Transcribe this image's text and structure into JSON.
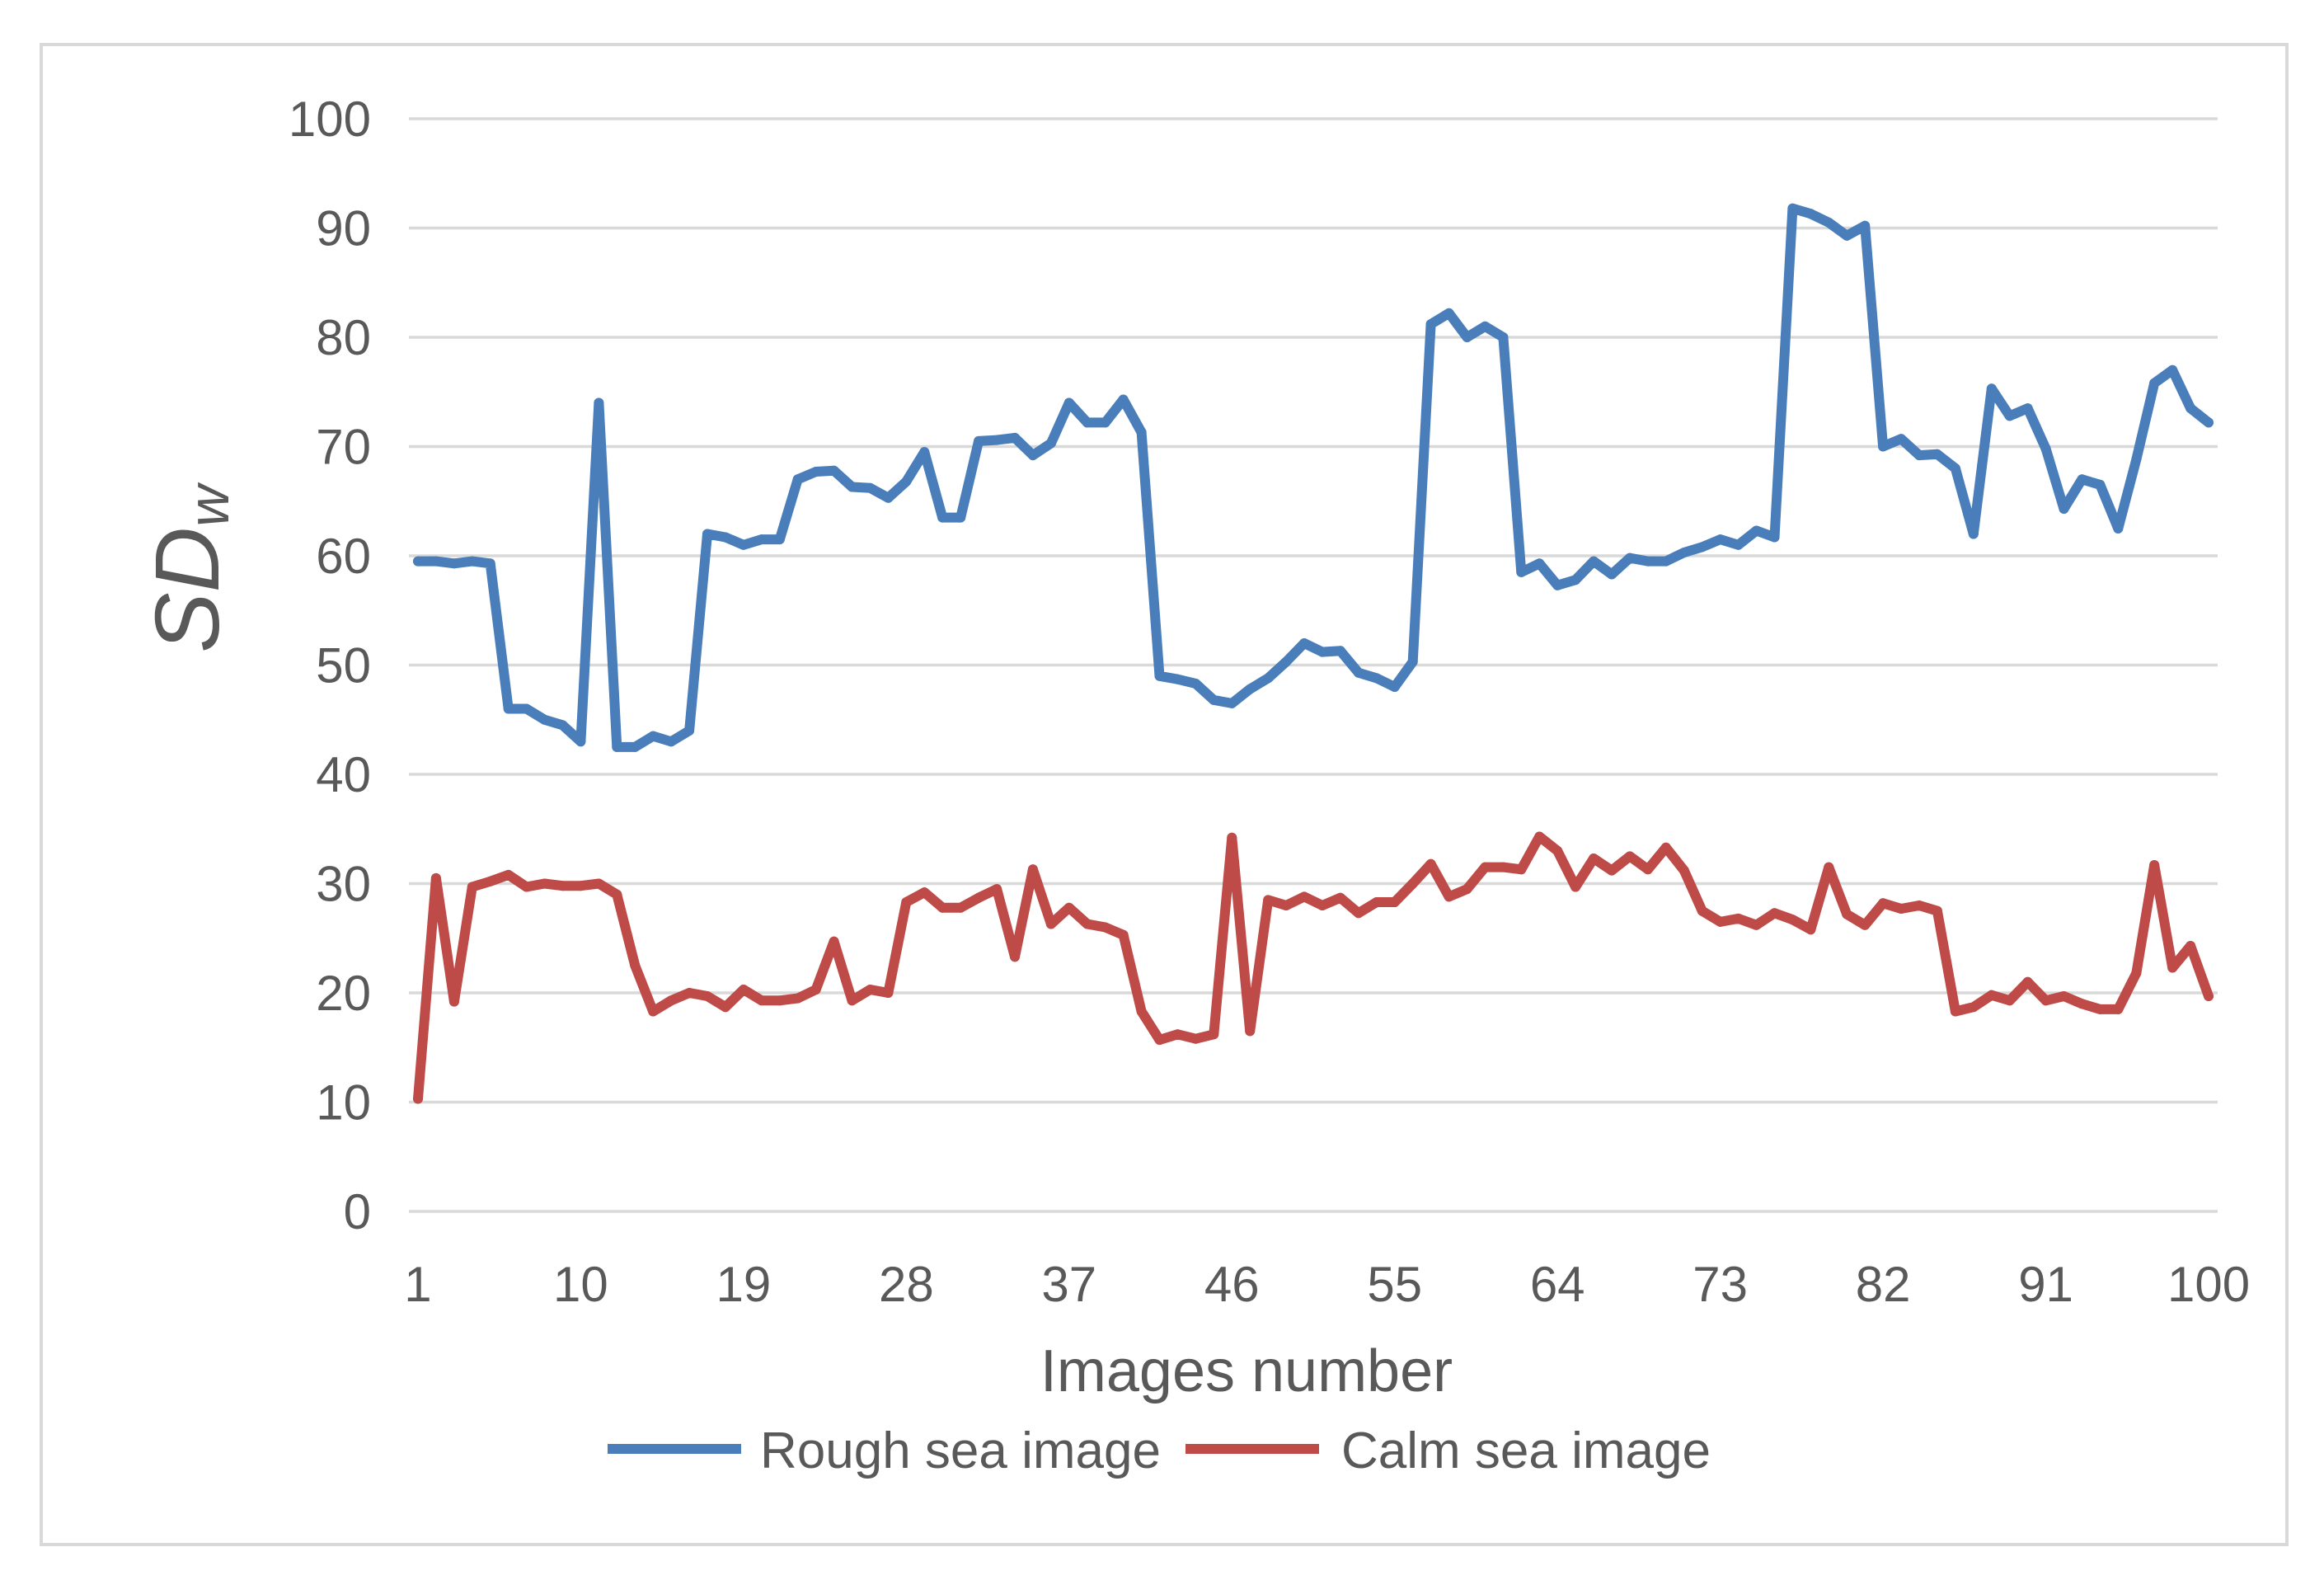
{
  "chart_data": {
    "type": "line",
    "xlabel": "Images number",
    "ylabel": "SD",
    "ylabel_subscript": "w",
    "ylim": [
      0,
      100
    ],
    "yticks": [
      0,
      10,
      20,
      30,
      40,
      50,
      60,
      70,
      80,
      90,
      100
    ],
    "xticks": [
      1,
      10,
      19,
      28,
      37,
      46,
      55,
      64,
      73,
      82,
      91,
      100
    ],
    "grid": "horizontal",
    "legend": "bottom",
    "x": [
      1,
      2,
      3,
      4,
      5,
      6,
      7,
      8,
      9,
      10,
      11,
      12,
      13,
      14,
      15,
      16,
      17,
      18,
      19,
      20,
      21,
      22,
      23,
      24,
      25,
      26,
      27,
      28,
      29,
      30,
      31,
      32,
      33,
      34,
      35,
      36,
      37,
      38,
      39,
      40,
      41,
      42,
      43,
      44,
      45,
      46,
      47,
      48,
      49,
      50,
      51,
      52,
      53,
      54,
      55,
      56,
      57,
      58,
      59,
      60,
      61,
      62,
      63,
      64,
      65,
      66,
      67,
      68,
      69,
      70,
      71,
      72,
      73,
      74,
      75,
      76,
      77,
      78,
      79,
      80,
      81,
      82,
      83,
      84,
      85,
      86,
      87,
      88,
      89,
      90,
      91,
      92,
      93,
      94,
      95,
      96,
      97,
      98,
      99,
      100
    ],
    "series": [
      {
        "name": "Rough sea image",
        "color": "#4a7ebb",
        "values": [
          59.5,
          59.5,
          59.3,
          59.5,
          59.3,
          46.0,
          46.0,
          45.0,
          44.5,
          43.0,
          74.0,
          42.5,
          42.5,
          43.5,
          43.0,
          44.0,
          62.0,
          61.7,
          61.0,
          61.5,
          61.5,
          67.0,
          67.7,
          67.8,
          66.3,
          66.2,
          65.3,
          66.8,
          69.5,
          63.5,
          63.5,
          70.5,
          70.6,
          70.8,
          69.2,
          70.3,
          74.0,
          72.2,
          72.2,
          74.3,
          71.3,
          49.0,
          48.7,
          48.3,
          46.8,
          46.5,
          47.8,
          48.8,
          50.3,
          52.0,
          51.2,
          51.3,
          49.3,
          48.8,
          48.0,
          50.3,
          81.2,
          82.2,
          80.0,
          81.0,
          80.0,
          58.5,
          59.3,
          57.3,
          57.8,
          59.5,
          58.3,
          59.8,
          59.5,
          59.5,
          60.3,
          60.8,
          61.5,
          61.0,
          62.3,
          61.7,
          91.8,
          91.3,
          90.5,
          89.3,
          90.2,
          70.0,
          70.7,
          69.2,
          69.3,
          68.0,
          62.0,
          75.3,
          72.8,
          73.5,
          69.8,
          64.3,
          67.0,
          66.5,
          62.5,
          68.8,
          75.8,
          77.0,
          73.5,
          72.2
        ]
      },
      {
        "name": "Calm sea image",
        "color": "#be4b48",
        "values": [
          10.3,
          30.5,
          19.2,
          29.7,
          30.2,
          30.8,
          29.7,
          30.0,
          29.8,
          29.8,
          30.0,
          29.0,
          22.5,
          18.3,
          19.3,
          20.0,
          19.7,
          18.7,
          20.3,
          19.3,
          19.3,
          19.5,
          20.3,
          24.7,
          19.3,
          20.3,
          20.0,
          28.3,
          29.2,
          27.8,
          27.8,
          28.7,
          29.5,
          23.3,
          31.3,
          26.3,
          27.8,
          26.3,
          26.0,
          25.3,
          18.3,
          15.7,
          16.2,
          15.8,
          16.2,
          34.2,
          16.5,
          28.5,
          28.0,
          28.8,
          28.0,
          28.7,
          27.3,
          28.3,
          28.3,
          30.0,
          31.8,
          28.8,
          29.5,
          31.5,
          31.5,
          31.3,
          34.3,
          33.0,
          29.7,
          32.3,
          31.2,
          32.5,
          31.3,
          33.3,
          31.2,
          27.5,
          26.5,
          26.8,
          26.2,
          27.3,
          26.7,
          25.8,
          31.5,
          27.2,
          26.2,
          28.2,
          27.7,
          28.0,
          27.5,
          18.3,
          18.7,
          19.8,
          19.3,
          21.0,
          19.3,
          19.7,
          19.0,
          18.5,
          18.5,
          21.8,
          31.7,
          22.3,
          24.3,
          19.7
        ]
      }
    ]
  }
}
